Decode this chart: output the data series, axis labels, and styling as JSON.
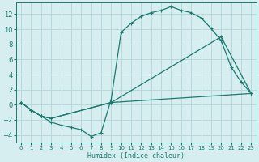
{
  "xlabel": "Humidex (Indice chaleur)",
  "bg_color": "#d6eef0",
  "grid_color": "#b8d8dc",
  "line_color": "#1a7a6e",
  "xlim": [
    -0.5,
    23.5
  ],
  "ylim": [
    -5,
    13.5
  ],
  "yticks": [
    -4,
    -2,
    0,
    2,
    4,
    6,
    8,
    10,
    12
  ],
  "xticks": [
    0,
    1,
    2,
    3,
    4,
    5,
    6,
    7,
    8,
    9,
    10,
    11,
    12,
    13,
    14,
    15,
    16,
    17,
    18,
    19,
    20,
    21,
    22,
    23
  ],
  "line1_x": [
    0,
    1,
    2,
    3,
    4,
    5,
    6,
    7,
    8,
    9,
    10,
    11,
    12,
    13,
    14,
    15,
    16,
    17,
    18,
    19,
    20,
    21,
    22,
    23
  ],
  "line1_y": [
    0.3,
    -0.7,
    -1.5,
    -2.3,
    -2.7,
    -3.0,
    -3.3,
    -4.2,
    -3.7,
    0.7,
    9.6,
    10.8,
    11.7,
    12.2,
    12.5,
    13.0,
    12.5,
    12.2,
    11.5,
    10.1,
    8.5,
    5.0,
    3.0,
    1.5
  ],
  "line2_x": [
    0,
    1,
    2,
    3,
    9,
    20,
    23
  ],
  "line2_y": [
    0.3,
    -0.7,
    -1.5,
    -1.8,
    0.3,
    9.0,
    1.5
  ],
  "line3_x": [
    0,
    1,
    2,
    3,
    9,
    23
  ],
  "line3_y": [
    0.3,
    -0.7,
    -1.5,
    -1.8,
    0.3,
    1.5
  ]
}
